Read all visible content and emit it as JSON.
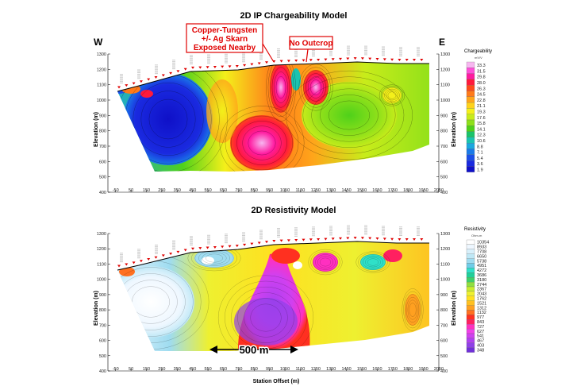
{
  "figure": {
    "direction_west": "W",
    "direction_east": "E",
    "xlabel": "Station Offset (m)"
  },
  "callouts": {
    "skarn": [
      "Copper-Tungsten",
      "+/- Ag Skarn",
      "Exposed Nearby"
    ],
    "outcrop": "No Outcrop",
    "scale_bar": "500 m"
  },
  "colors": {
    "callout_red": "#e00000",
    "station_marker": "#e00000"
  },
  "chart_data": [
    {
      "type": "heatmap",
      "title": "2D IP Chargeability Model",
      "xlabel": "",
      "ylabel": "Elevation (m)",
      "xlim": [
        -100,
        2050
      ],
      "ylim": [
        400,
        1300
      ],
      "x_ticks": [
        -50,
        50,
        150,
        250,
        350,
        450,
        550,
        650,
        750,
        850,
        950,
        1050,
        1150,
        1250,
        1350,
        1450,
        1550,
        1650,
        1750,
        1850,
        1950,
        2050
      ],
      "y_ticks": [
        400,
        500,
        600,
        700,
        800,
        900,
        1000,
        1100,
        1200,
        1300
      ],
      "colorbar": {
        "title": "Chargeability",
        "unit": "mV/V",
        "levels": [
          33.3,
          31.5,
          29.8,
          28.0,
          26.3,
          24.5,
          22.8,
          21.1,
          19.3,
          17.6,
          15.8,
          14.1,
          12.3,
          10.6,
          8.8,
          7.1,
          5.4,
          3.6,
          1.9
        ],
        "colors": [
          "#f7b6f0",
          "#ff4fd8",
          "#ff1aa0",
          "#ff1a3c",
          "#ff4a1a",
          "#ff7a1a",
          "#ffa51a",
          "#ffd21a",
          "#f4f01a",
          "#c8ec1a",
          "#8ee01a",
          "#4fd11a",
          "#1ac46a",
          "#1ac4b0",
          "#1aa8e0",
          "#1a7ae8",
          "#1a4fe8",
          "#1a2ae0",
          "#0f10c8"
        ]
      }
    },
    {
      "type": "heatmap",
      "title": "2D Resistivity Model",
      "xlabel": "Station Offset (m)",
      "ylabel": "Elevation (m)",
      "xlim": [
        -100,
        2050
      ],
      "ylim": [
        400,
        1300
      ],
      "x_ticks": [
        -50,
        50,
        150,
        250,
        350,
        450,
        550,
        650,
        750,
        850,
        950,
        1050,
        1150,
        1250,
        1350,
        1450,
        1550,
        1650,
        1750,
        1850,
        1950,
        2050
      ],
      "y_ticks": [
        400,
        500,
        600,
        700,
        800,
        900,
        1000,
        1100,
        1200,
        1300
      ],
      "colorbar": {
        "title": "Resistivity",
        "unit": "Ohm-m",
        "levels": [
          10354,
          8933,
          7708,
          6650,
          5738,
          4951,
          4272,
          3686,
          3180,
          2744,
          2367,
          2043,
          1762,
          1521,
          1312,
          1132,
          977,
          843,
          727,
          627,
          541,
          467,
          403,
          348
        ],
        "colors": [
          "#ffffff",
          "#eef7ff",
          "#d8f0fb",
          "#bfe8f6",
          "#9fdcf0",
          "#6fcde8",
          "#2fe0c8",
          "#1fd09a",
          "#3fd06a",
          "#8fe040",
          "#c8ec30",
          "#eef030",
          "#ffe020",
          "#ffc020",
          "#ffa020",
          "#ff7020",
          "#ff3020",
          "#ff2060",
          "#ff30c0",
          "#f040e8",
          "#d040f0",
          "#b040f0",
          "#9040e8",
          "#7030d8"
        ]
      }
    }
  ]
}
